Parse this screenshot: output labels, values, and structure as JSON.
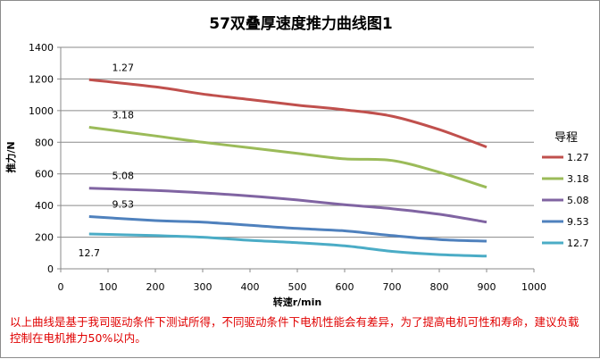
{
  "chart_data": {
    "type": "line",
    "title": "57双叠厚速度推力曲线图1",
    "xlabel": "转速r/min",
    "ylabel": "推力/N",
    "xlim": [
      0,
      1000
    ],
    "ylim": [
      0,
      1400
    ],
    "x_ticks": [
      0,
      100,
      200,
      300,
      400,
      500,
      600,
      700,
      800,
      900,
      1000
    ],
    "y_ticks": [
      0,
      200,
      400,
      600,
      800,
      1000,
      1200,
      1400
    ],
    "grid": "horizontal",
    "legend_title": "导程",
    "legend_position": "right",
    "x": [
      60,
      200,
      300,
      400,
      500,
      600,
      700,
      800,
      900
    ],
    "series": [
      {
        "name": "1.27",
        "color": "#c0504d",
        "values": [
          1195,
          1150,
          1105,
          1070,
          1035,
          1005,
          965,
          880,
          770
        ]
      },
      {
        "name": "3.18",
        "color": "#9bbb59",
        "values": [
          895,
          840,
          800,
          765,
          730,
          695,
          685,
          610,
          515
        ]
      },
      {
        "name": "5.08",
        "color": "#8064a2",
        "values": [
          510,
          495,
          480,
          460,
          435,
          405,
          380,
          345,
          295
        ]
      },
      {
        "name": "9.53",
        "color": "#4f81bd",
        "values": [
          330,
          305,
          295,
          275,
          255,
          240,
          210,
          185,
          175
        ]
      },
      {
        "name": "12.7",
        "color": "#4bacc6",
        "values": [
          220,
          210,
          200,
          180,
          165,
          145,
          110,
          90,
          80
        ]
      }
    ],
    "annotations": [
      {
        "text": "1.27",
        "series": "1.27"
      },
      {
        "text": "3.18",
        "series": "3.18"
      },
      {
        "text": "5.08",
        "series": "5.08"
      },
      {
        "text": "9.53",
        "series": "9.53"
      },
      {
        "text": "12.7",
        "series": "12.7"
      }
    ]
  },
  "footnote": "以上曲线是基于我司驱动条件下测试所得，不同驱动条件下电机性能会有差异，为了提高电机可性和寿命，建议负载控制在电机推力50%以内。"
}
